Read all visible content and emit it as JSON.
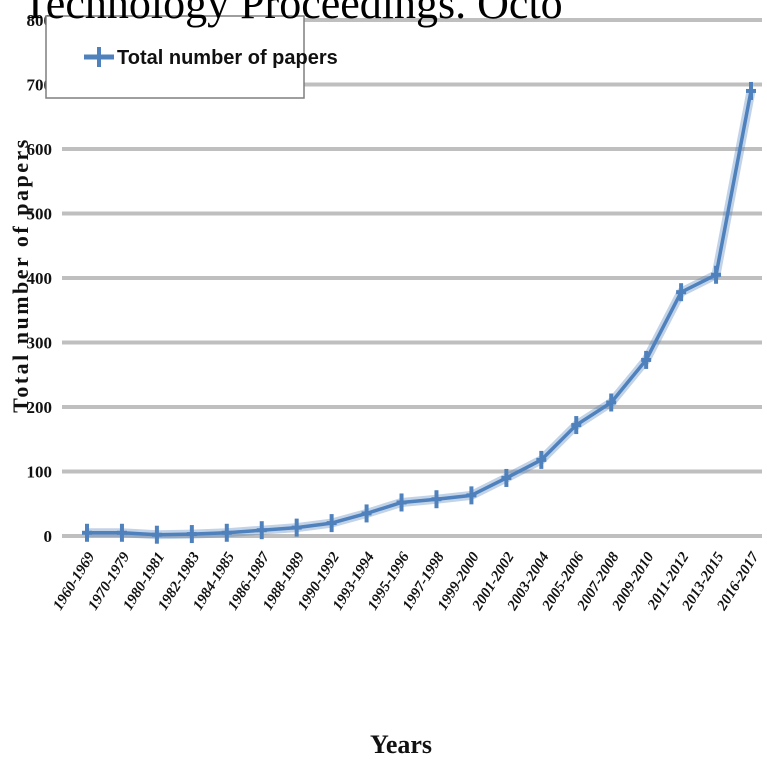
{
  "banner_text": "Technology Proceedings. Octo",
  "chart_data": {
    "type": "line",
    "xlabel": "Years",
    "ylabel": "Total number of papers",
    "ylim": [
      0,
      800
    ],
    "y_ticks": [
      "0",
      "100",
      "200",
      "300",
      "400",
      "500",
      "600",
      "700",
      "800"
    ],
    "grid": true,
    "legend_position": "top-left",
    "categories": [
      "1960-1969",
      "1970-1979",
      "1980-1981",
      "1982-1983",
      "1984-1985",
      "1986-1987",
      "1988-1989",
      "1990-1992",
      "1993-1994",
      "1995-1996",
      "1997-1998",
      "1999-2000",
      "2001-2002",
      "2003-2004",
      "2005-2006",
      "2007-2008",
      "2009-2010",
      "2011-2012",
      "2013-2015",
      "2016-2017"
    ],
    "series": [
      {
        "name": "Total number of papers",
        "color": "#4f81bd",
        "values": [
          5,
          5,
          2,
          3,
          5,
          9,
          13,
          20,
          35,
          52,
          57,
          63,
          90,
          118,
          172,
          207,
          273,
          378,
          405,
          690
        ]
      }
    ]
  }
}
